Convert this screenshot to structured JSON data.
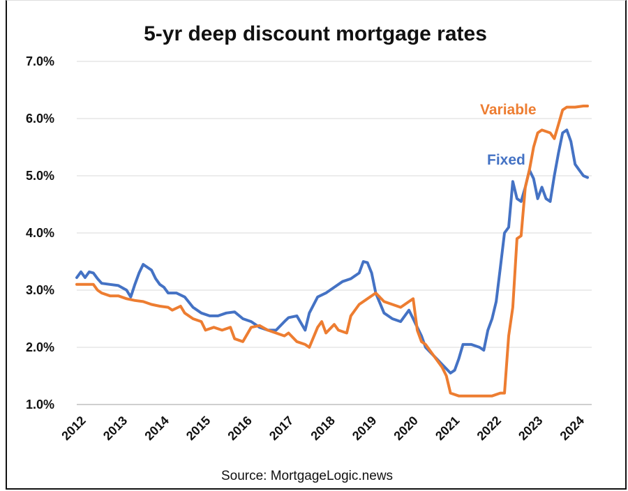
{
  "chart_data": {
    "type": "line",
    "title": "5-yr deep discount mortgage rates",
    "source": "Source: MortgageLogic.news",
    "xlabel": "",
    "ylabel": "",
    "ylim": [
      1.0,
      7.0
    ],
    "yticks": [
      "1.0%",
      "2.0%",
      "3.0%",
      "4.0%",
      "5.0%",
      "6.0%",
      "7.0%"
    ],
    "xlim": [
      2012,
      2024.4
    ],
    "xticks": [
      "2012",
      "2013",
      "2014",
      "2015",
      "2016",
      "2017",
      "2018",
      "2019",
      "2020",
      "2021",
      "2022",
      "2023",
      "2024"
    ],
    "grid": "horizontal",
    "series": [
      {
        "name": "Fixed",
        "color": "#4472C4",
        "x": [
          2012.0,
          2012.1,
          2012.2,
          2012.3,
          2012.4,
          2012.5,
          2012.6,
          2012.8,
          2013.0,
          2013.2,
          2013.3,
          2013.4,
          2013.5,
          2013.6,
          2013.8,
          2013.9,
          2014.0,
          2014.1,
          2014.2,
          2014.4,
          2014.6,
          2014.8,
          2015.0,
          2015.2,
          2015.4,
          2015.6,
          2015.8,
          2016.0,
          2016.2,
          2016.4,
          2016.6,
          2016.8,
          2017.0,
          2017.1,
          2017.3,
          2017.5,
          2017.6,
          2017.8,
          2018.0,
          2018.2,
          2018.4,
          2018.6,
          2018.8,
          2018.9,
          2019.0,
          2019.1,
          2019.2,
          2019.4,
          2019.6,
          2019.8,
          2020.0,
          2020.1,
          2020.2,
          2020.3,
          2020.4,
          2020.6,
          2020.8,
          2021.0,
          2021.1,
          2021.2,
          2021.3,
          2021.5,
          2021.7,
          2021.8,
          2021.9,
          2022.0,
          2022.1,
          2022.2,
          2022.3,
          2022.4,
          2022.5,
          2022.6,
          2022.7,
          2022.8,
          2022.9,
          2023.0,
          2023.1,
          2023.2,
          2023.3,
          2023.4,
          2023.5,
          2023.6,
          2023.7,
          2023.8,
          2023.9,
          2024.0,
          2024.1,
          2024.2,
          2024.3
        ],
        "values": [
          3.22,
          3.32,
          3.22,
          3.32,
          3.3,
          3.2,
          3.12,
          3.1,
          3.08,
          3.0,
          2.88,
          3.1,
          3.3,
          3.45,
          3.35,
          3.2,
          3.1,
          3.05,
          2.95,
          2.95,
          2.88,
          2.7,
          2.6,
          2.55,
          2.55,
          2.6,
          2.62,
          2.5,
          2.45,
          2.35,
          2.3,
          2.3,
          2.45,
          2.52,
          2.55,
          2.3,
          2.6,
          2.88,
          2.95,
          3.05,
          3.15,
          3.2,
          3.3,
          3.5,
          3.48,
          3.3,
          2.95,
          2.6,
          2.5,
          2.45,
          2.65,
          2.5,
          2.35,
          2.2,
          2.0,
          1.85,
          1.7,
          1.55,
          1.6,
          1.8,
          2.05,
          2.05,
          2.0,
          1.95,
          2.3,
          2.5,
          2.8,
          3.4,
          4.0,
          4.1,
          4.9,
          4.6,
          4.55,
          4.8,
          5.1,
          4.95,
          4.6,
          4.8,
          4.6,
          4.55,
          5.0,
          5.4,
          5.75,
          5.8,
          5.6,
          5.2,
          5.1,
          5.0,
          4.97
        ]
      },
      {
        "name": "Variable",
        "color": "#ED7D31",
        "x": [
          2012.0,
          2012.2,
          2012.4,
          2012.5,
          2012.6,
          2012.8,
          2013.0,
          2013.2,
          2013.4,
          2013.6,
          2013.8,
          2014.0,
          2014.2,
          2014.3,
          2014.5,
          2014.6,
          2014.8,
          2015.0,
          2015.1,
          2015.3,
          2015.5,
          2015.7,
          2015.8,
          2016.0,
          2016.2,
          2016.4,
          2016.6,
          2016.8,
          2017.0,
          2017.1,
          2017.3,
          2017.5,
          2017.6,
          2017.8,
          2017.9,
          2018.0,
          2018.2,
          2018.3,
          2018.5,
          2018.6,
          2018.8,
          2019.0,
          2019.2,
          2019.4,
          2019.6,
          2019.8,
          2020.0,
          2020.1,
          2020.2,
          2020.3,
          2020.4,
          2020.6,
          2020.8,
          2020.9,
          2021.0,
          2021.2,
          2021.4,
          2021.6,
          2021.8,
          2021.9,
          2022.0,
          2022.2,
          2022.3,
          2022.4,
          2022.5,
          2022.6,
          2022.7,
          2022.8,
          2022.9,
          2023.0,
          2023.1,
          2023.2,
          2023.4,
          2023.5,
          2023.6,
          2023.7,
          2023.8,
          2023.9,
          2024.0,
          2024.2,
          2024.3
        ],
        "values": [
          3.1,
          3.1,
          3.1,
          3.0,
          2.95,
          2.9,
          2.9,
          2.85,
          2.82,
          2.8,
          2.75,
          2.72,
          2.7,
          2.65,
          2.72,
          2.6,
          2.5,
          2.45,
          2.3,
          2.35,
          2.3,
          2.35,
          2.15,
          2.1,
          2.35,
          2.38,
          2.3,
          2.25,
          2.2,
          2.25,
          2.1,
          2.05,
          2.0,
          2.35,
          2.45,
          2.25,
          2.4,
          2.3,
          2.25,
          2.55,
          2.75,
          2.85,
          2.95,
          2.8,
          2.75,
          2.7,
          2.8,
          2.85,
          2.3,
          2.1,
          2.05,
          1.85,
          1.65,
          1.5,
          1.2,
          1.15,
          1.15,
          1.15,
          1.15,
          1.15,
          1.15,
          1.2,
          1.2,
          2.2,
          2.7,
          3.9,
          3.95,
          4.8,
          5.1,
          5.5,
          5.75,
          5.8,
          5.75,
          5.65,
          5.9,
          6.15,
          6.2,
          6.2,
          6.2,
          6.22,
          6.22
        ]
      }
    ],
    "annotations": [
      {
        "text": "Variable",
        "series": "Variable"
      },
      {
        "text": "Fixed",
        "series": "Fixed"
      }
    ]
  }
}
